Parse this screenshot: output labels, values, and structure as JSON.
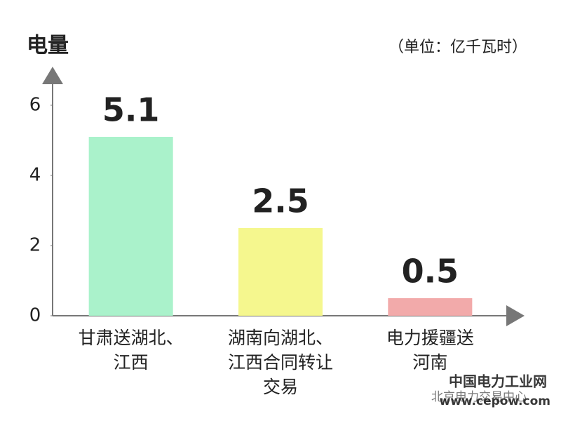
{
  "chart_data": {
    "type": "bar",
    "y_axis_label": "电量",
    "unit_note": "（单位：亿千瓦时）",
    "categories": [
      [
        "甘肃送湖北、",
        "江西"
      ],
      [
        "湖南向湖北、",
        "江西合同转让",
        "交易"
      ],
      [
        "电力援疆送",
        "河南"
      ]
    ],
    "values": [
      5.1,
      2.5,
      0.5
    ],
    "colors": [
      "#aaf2cb",
      "#f5f78e",
      "#f2aaaa"
    ],
    "value_label_color": "#b73a3d",
    "ylim": [
      0,
      7
    ],
    "yticks": [
      0,
      2,
      4,
      6
    ],
    "grid": false,
    "watermark": [
      "中国电力工业网",
      "www.cepow.com",
      "北京电力交易中心"
    ]
  }
}
